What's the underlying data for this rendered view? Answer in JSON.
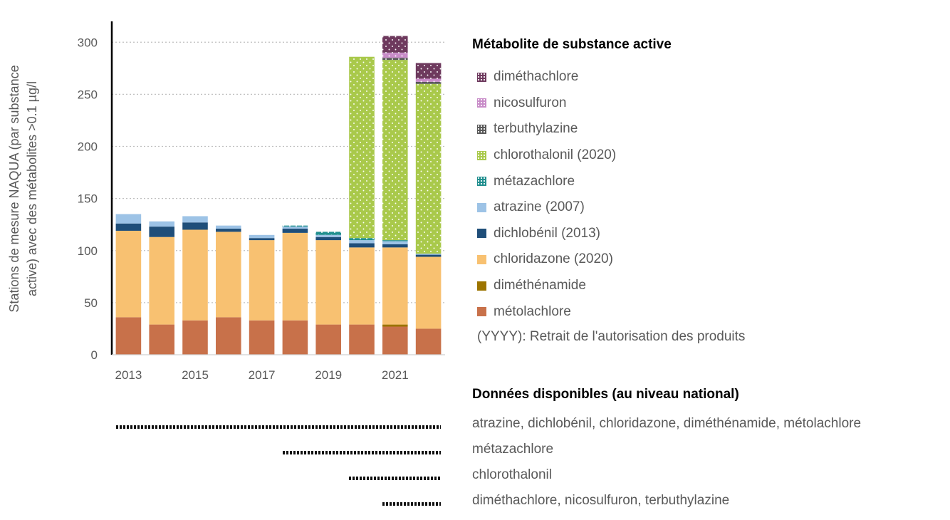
{
  "chart_data": {
    "type": "bar",
    "stacked": true,
    "ylabel": "Stations de mesure NAQUA (par substance active) avec des métabolites >0.1 µg/l",
    "ylabel_lines": [
      "Stations de mesure NAQUA (par substance",
      "active) avec des métabolites >0.1 µg/l"
    ],
    "ylim": [
      0,
      320
    ],
    "yticks": [
      0,
      50,
      100,
      150,
      200,
      250,
      300
    ],
    "grid": true,
    "categories": [
      "2013",
      "2014",
      "2015",
      "2016",
      "2017",
      "2018",
      "2019",
      "2020",
      "2021",
      "2022"
    ],
    "xtick_labels": [
      "2013",
      "",
      "2015",
      "",
      "2017",
      "",
      "2019",
      "",
      "2021",
      ""
    ],
    "series": [
      {
        "name": "métolachlore",
        "color": "#c8714a",
        "pattern": "solid",
        "values": [
          36,
          29,
          33,
          36,
          33,
          33,
          29,
          29,
          27,
          25
        ]
      },
      {
        "name": "diméthénamide",
        "color": "#9c7400",
        "pattern": "solid",
        "values": [
          0,
          0,
          0,
          0,
          0,
          0,
          0,
          0,
          2,
          0
        ]
      },
      {
        "name": "chloridazone (2020)",
        "color": "#f8c171",
        "pattern": "solid",
        "values": [
          83,
          84,
          87,
          82,
          77,
          84,
          81,
          74,
          74,
          69
        ]
      },
      {
        "name": "dichlobénil (2013)",
        "color": "#1f4e79",
        "pattern": "solid",
        "values": [
          7,
          10,
          7,
          3,
          2,
          4,
          3,
          4,
          3,
          2
        ]
      },
      {
        "name": "atrazine (2007)",
        "color": "#9dc3e6",
        "pattern": "solid",
        "values": [
          9,
          5,
          6,
          3,
          3,
          2,
          2,
          3,
          3,
          1
        ]
      },
      {
        "name": "métazachlore",
        "color": "#218f8f",
        "pattern": "dots",
        "values": [
          0,
          0,
          0,
          0,
          0,
          1,
          3,
          2,
          1,
          0
        ]
      },
      {
        "name": "chlorothalonil (2020)",
        "color": "#a9c94b",
        "pattern": "dots",
        "values": [
          0,
          0,
          0,
          0,
          0,
          0,
          0,
          174,
          173,
          163
        ]
      },
      {
        "name": "terbuthylazine",
        "color": "#595959",
        "pattern": "dots",
        "values": [
          0,
          0,
          0,
          0,
          0,
          0,
          0,
          0,
          2,
          2
        ]
      },
      {
        "name": "nicosulfuron",
        "color": "#c88cc8",
        "pattern": "dots",
        "values": [
          0,
          0,
          0,
          0,
          0,
          0,
          0,
          0,
          5,
          3
        ]
      },
      {
        "name": "diméthachlore",
        "color": "#6e3a5e",
        "pattern": "dots",
        "values": [
          0,
          0,
          0,
          0,
          0,
          0,
          0,
          0,
          16,
          15
        ]
      }
    ]
  },
  "legend": {
    "title": "Métabolite de substance active",
    "items": [
      {
        "label": "diméthachlore",
        "color": "#6e3a5e",
        "pattern": "dots"
      },
      {
        "label": "nicosulfuron",
        "color": "#c88cc8",
        "pattern": "dots"
      },
      {
        "label": "terbuthylazine",
        "color": "#595959",
        "pattern": "dots"
      },
      {
        "label": "chlorothalonil (2020)",
        "color": "#a9c94b",
        "pattern": "dots"
      },
      {
        "label": "métazachlore",
        "color": "#218f8f",
        "pattern": "dots"
      },
      {
        "label": "atrazine (2007)",
        "color": "#9dc3e6",
        "pattern": "solid"
      },
      {
        "label": "dichlobénil (2013)",
        "color": "#1f4e79",
        "pattern": "solid"
      },
      {
        "label": "chloridazone (2020)",
        "color": "#f8c171",
        "pattern": "solid"
      },
      {
        "label": "diméthénamide",
        "color": "#9c7400",
        "pattern": "solid"
      },
      {
        "label": "métolachlore",
        "color": "#c8714a",
        "pattern": "solid"
      }
    ],
    "note": "(YYYY):  Retrait de l'autorisation des produits"
  },
  "availability": {
    "title": "Données disponibles (au niveau national)",
    "rows": [
      {
        "label": "atrazine, dichlobénil, chloridazone, diméthénamide, métolachlore",
        "start": "2013",
        "end": "2022"
      },
      {
        "label": "métazachlore",
        "start": "2018",
        "end": "2022"
      },
      {
        "label": "chlorothalonil",
        "start": "2020",
        "end": "2022"
      },
      {
        "label": "diméthachlore, nicosulfuron, terbuthylazine",
        "start": "2021",
        "end": "2022"
      }
    ]
  }
}
